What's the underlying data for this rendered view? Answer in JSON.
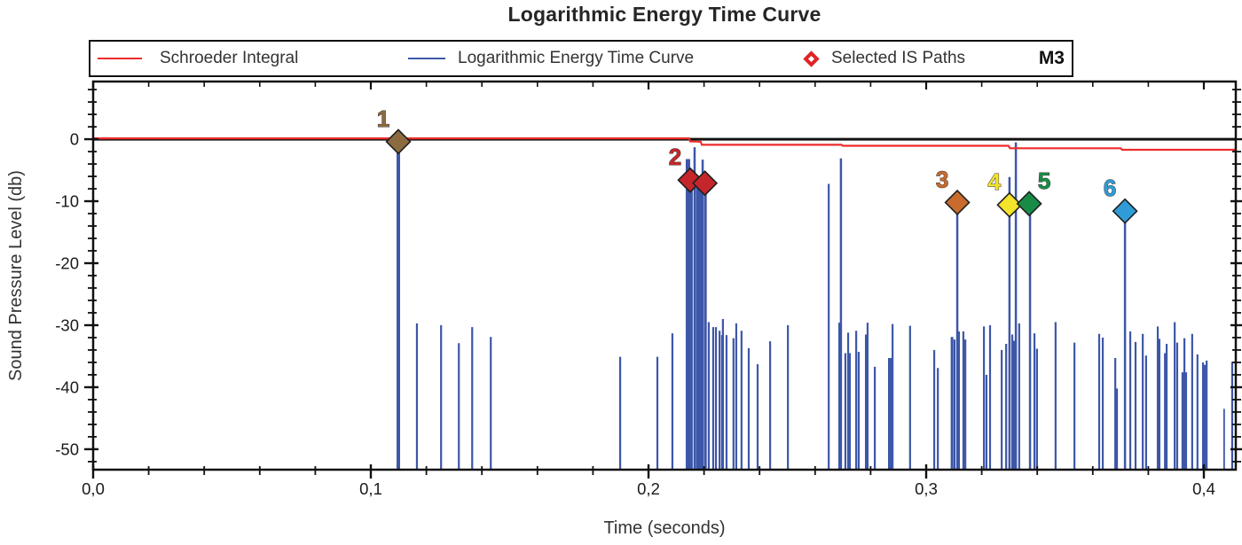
{
  "title": "Logarithmic Energy Time Curve",
  "legend": {
    "items": [
      {
        "label": "Schroeder Integral",
        "marker": "line",
        "color": "#ee2c2c"
      },
      {
        "label": "Logarithmic Energy Time Curve",
        "marker": "line",
        "color": "#3d57a8"
      },
      {
        "label": "Selected IS Paths",
        "marker": "diamond",
        "color": "#e02326"
      }
    ],
    "tag": "M3"
  },
  "colors": {
    "frame": "#111111",
    "zero_line": "#111111",
    "stem_blue": "#3d57a8",
    "schroeder_red": "#ee2c2c",
    "background": "#ffffff"
  },
  "chart_data": {
    "type": "line",
    "subtype": "stem-plot-with-integral",
    "title": "Logarithmic Energy Time Curve",
    "xlabel": "Time (seconds)",
    "ylabel": "Sound Pressure Level (db)",
    "xlim": [
      0,
      0.4115
    ],
    "ylim": [
      -53.3,
      9.3
    ],
    "x_ticks": [
      0,
      0.1,
      0.2,
      0.3,
      0.4
    ],
    "x_tick_labels": [
      "0,0",
      "0,1",
      "0,2",
      "0,3",
      "0,4"
    ],
    "x_minor_step": 0.02,
    "y_ticks": [
      0,
      -10,
      -20,
      -30,
      -40,
      -50
    ],
    "y_tick_labels": [
      "0",
      "-10",
      "-20",
      "-30",
      "-40",
      "-50"
    ],
    "y_minor_step": 2,
    "grid": false,
    "legend_position": "top",
    "series": [
      {
        "name": "Schroeder Integral",
        "kind": "step-line",
        "color": "#ee2c2c",
        "points": [
          [
            0,
            0
          ],
          [
            0.2146,
            0
          ],
          [
            0.215,
            -0.5
          ],
          [
            0.2188,
            -0.55
          ],
          [
            0.2192,
            -1.05
          ],
          [
            0.2695,
            -1.05
          ],
          [
            0.27,
            -1.2
          ],
          [
            0.3296,
            -1.2
          ],
          [
            0.3302,
            -1.6
          ],
          [
            0.37,
            -1.6
          ],
          [
            0.3706,
            -1.85
          ],
          [
            0.4115,
            -1.85
          ]
        ]
      },
      {
        "name": "Logarithmic Energy Time Curve",
        "kind": "stem",
        "color": "#3d57a8",
        "baseline": -53.3,
        "stems": [
          [
            0.1099,
            -0.2,
            4
          ],
          [
            0.1166,
            -29.7,
            2.2
          ],
          [
            0.1253,
            -30.0,
            2.2
          ],
          [
            0.1317,
            -32.9,
            2.2
          ],
          [
            0.1365,
            -30.3,
            2.2
          ],
          [
            0.1432,
            -31.9,
            2.2
          ],
          [
            0.1898,
            -35.1,
            2.2
          ],
          [
            0.2032,
            -35.1,
            2.2
          ],
          [
            0.2086,
            -31.3,
            2.2
          ],
          [
            0.2142,
            -3.2,
            5
          ],
          [
            0.2153,
            -5.5,
            4
          ],
          [
            0.2166,
            -1.3,
            2.5
          ],
          [
            0.2177,
            -6.0,
            4
          ],
          [
            0.2187,
            -6.2,
            3
          ],
          [
            0.2195,
            -3.3,
            2.5
          ],
          [
            0.2205,
            -7.2,
            3
          ],
          [
            0.2217,
            -29.5,
            2.2
          ],
          [
            0.2233,
            -30.3,
            2.2
          ],
          [
            0.2243,
            -30.3,
            2.2
          ],
          [
            0.2256,
            -30.9,
            2.2
          ],
          [
            0.2265,
            -31.6,
            2.2
          ],
          [
            0.2268,
            -29.0,
            2.2
          ],
          [
            0.2281,
            -31.6,
            2.2
          ],
          [
            0.2306,
            -32.1,
            2.2
          ],
          [
            0.2316,
            -29.7,
            2.2
          ],
          [
            0.2335,
            -30.9,
            2.2
          ],
          [
            0.2361,
            -33.7,
            2.2
          ],
          [
            0.2393,
            -36.3,
            2.2
          ],
          [
            0.2438,
            -32.6,
            2.2
          ],
          [
            0.2502,
            -30.0,
            2.2
          ],
          [
            0.2649,
            -7.2,
            2.2
          ],
          [
            0.2687,
            -29.6,
            2.2
          ],
          [
            0.2693,
            -3.1,
            2.5
          ],
          [
            0.2709,
            -34.5,
            2.2
          ],
          [
            0.2719,
            -31.2,
            2.2
          ],
          [
            0.2725,
            -34.5,
            2.2
          ],
          [
            0.2748,
            -30.9,
            2.2
          ],
          [
            0.2757,
            -34.3,
            2.2
          ],
          [
            0.2783,
            -31.5,
            2.2
          ],
          [
            0.2786,
            -42.1,
            1.8
          ],
          [
            0.2789,
            -29.6,
            2.2
          ],
          [
            0.2815,
            -36.7,
            2.2
          ],
          [
            0.2869,
            -35.3,
            4
          ],
          [
            0.2879,
            -29.8,
            2.2
          ],
          [
            0.2942,
            -30.1,
            2.2
          ],
          [
            0.3029,
            -34.0,
            2.2
          ],
          [
            0.3042,
            -36.9,
            2.2
          ],
          [
            0.3093,
            -31.9,
            3
          ],
          [
            0.3102,
            -32.3,
            2.2
          ],
          [
            0.3112,
            -10.2,
            2.5
          ],
          [
            0.3118,
            -31.0,
            2.2
          ],
          [
            0.3134,
            -31.0,
            2.2
          ],
          [
            0.3141,
            -32.3,
            2.2
          ],
          [
            0.3208,
            -30.2,
            2.2
          ],
          [
            0.3217,
            -38.0,
            2.2
          ],
          [
            0.323,
            -30.0,
            2.2
          ],
          [
            0.3272,
            -34.0,
            2.2
          ],
          [
            0.3288,
            -33.0,
            2.2
          ],
          [
            0.33,
            -6.1,
            2.5
          ],
          [
            0.331,
            -31.5,
            2.2
          ],
          [
            0.3316,
            -32.5,
            2.2
          ],
          [
            0.3323,
            -0.5,
            2.5
          ],
          [
            0.3335,
            -29.7,
            2.2
          ],
          [
            0.3374,
            -10.5,
            2.5
          ],
          [
            0.339,
            -31.3,
            2.2
          ],
          [
            0.3399,
            -33.8,
            2.2
          ],
          [
            0.3466,
            -29.5,
            2.2
          ],
          [
            0.3534,
            -32.8,
            2.2
          ],
          [
            0.3623,
            -31.4,
            2.2
          ],
          [
            0.3636,
            -32.0,
            2.2
          ],
          [
            0.3681,
            -35.3,
            2.2
          ],
          [
            0.3687,
            -40.2,
            2.2
          ],
          [
            0.3716,
            -11.6,
            2.5
          ],
          [
            0.3735,
            -31.0,
            2.2
          ],
          [
            0.3754,
            -32.7,
            2.2
          ],
          [
            0.378,
            -31.4,
            2.2
          ],
          [
            0.3792,
            -34.9,
            2.2
          ],
          [
            0.3834,
            -30.2,
            2.2
          ],
          [
            0.384,
            -32.2,
            2.2
          ],
          [
            0.386,
            -34.5,
            2.2
          ],
          [
            0.3866,
            -33.0,
            2.2
          ],
          [
            0.3895,
            -29.5,
            2.2
          ],
          [
            0.3904,
            -32.8,
            2.2
          ],
          [
            0.3923,
            -37.6,
            2.2
          ],
          [
            0.393,
            -32.1,
            2.2
          ],
          [
            0.3936,
            -37.6,
            2.2
          ],
          [
            0.3958,
            -31.4,
            2.2
          ],
          [
            0.3977,
            -34.7,
            2.2
          ],
          [
            0.3997,
            -36.0,
            2.2
          ],
          [
            0.4003,
            -36.4,
            2.2
          ],
          [
            0.401,
            -35.7,
            2.2
          ],
          [
            0.4073,
            -43.5,
            1.8
          ],
          [
            0.4102,
            -35.9,
            2.2
          ]
        ]
      }
    ],
    "markers": {
      "name": "Selected IS Paths",
      "shape": "diamond",
      "size": 19,
      "items": [
        {
          "n": "1",
          "t": 0.1099,
          "db": -0.4,
          "color": "#8c6b41",
          "label_side": "left"
        },
        {
          "n": "2",
          "t": 0.215,
          "db": -6.6,
          "color": "#c5262b",
          "label_side": "left"
        },
        {
          "n": "",
          "t": 0.2203,
          "db": -7.1,
          "color": "#c5262b",
          "label_side": "left"
        },
        {
          "n": "3",
          "t": 0.3112,
          "db": -10.2,
          "color": "#c96b2d",
          "label_side": "left"
        },
        {
          "n": "4",
          "t": 0.33,
          "db": -10.6,
          "color": "#f3e32a",
          "label_side": "left"
        },
        {
          "n": "5",
          "t": 0.3371,
          "db": -10.4,
          "color": "#188c46",
          "label_side": "right"
        },
        {
          "n": "6",
          "t": 0.3716,
          "db": -11.6,
          "color": "#2f9cd8",
          "label_side": "left"
        }
      ]
    }
  }
}
